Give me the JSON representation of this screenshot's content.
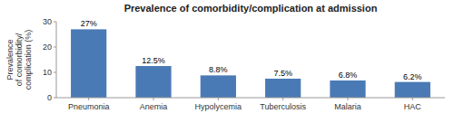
{
  "chart_data": {
    "type": "bar",
    "title": "Prevalence of comorbidity/complication at admission",
    "y_label": "Prevalence\nof comorbidity/\ncomplication (%)",
    "categories": [
      "Pneumonia",
      "Anemia",
      "Hypolycemia",
      "Tuberculosis",
      "Malaria",
      "HAC"
    ],
    "values": [
      27,
      12.5,
      8.8,
      7.5,
      6.8,
      6.2
    ],
    "value_labels": [
      "27%",
      "12.5%",
      "8.8%",
      "7.5%",
      "6.8%",
      "6.2%"
    ],
    "data_labels": true,
    "color": "#4a7ab5",
    "ylim": [
      0,
      30
    ],
    "yticks": [
      0,
      10,
      20,
      30
    ],
    "grid": false
  }
}
